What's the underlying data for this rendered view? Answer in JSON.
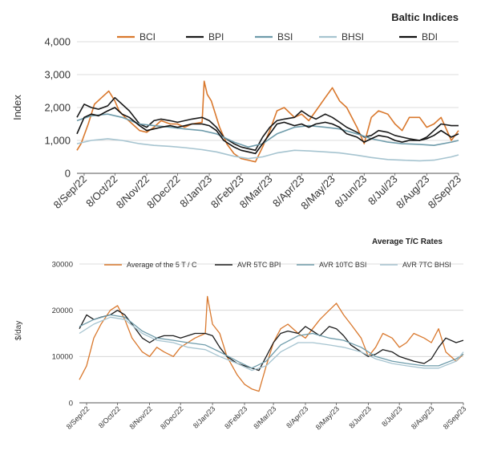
{
  "chart_data": [
    {
      "type": "line",
      "title": "Baltic Indices",
      "xlabel": "",
      "ylabel": "Index",
      "ylim": [
        0,
        4000
      ],
      "yticks": [
        "0",
        "1,000",
        "2,000",
        "3,000",
        "4,000"
      ],
      "ytick_values": [
        0,
        1000,
        2000,
        3000,
        4000
      ],
      "xlim": [
        "2022-09-01",
        "2023-09-08"
      ],
      "xticks": [
        "8/Sep/22",
        "8/Oct/22",
        "8/Nov/22",
        "8/Dec/22",
        "8/Jan/23",
        "8/Feb/23",
        "8/Mar/23",
        "8/Apr/23",
        "8/May/23",
        "8/Jun/23",
        "8/Jul/23",
        "8/Aug/23",
        "8/Sep/23"
      ],
      "xtick_dates": [
        "2022-09-08",
        "2022-10-08",
        "2022-11-08",
        "2022-12-08",
        "2023-01-08",
        "2023-02-08",
        "2023-03-08",
        "2023-04-08",
        "2023-05-08",
        "2023-06-08",
        "2023-07-08",
        "2023-08-08",
        "2023-09-08"
      ],
      "grid": true,
      "legend": "top",
      "series": [
        {
          "name": "BCI",
          "color": "#d9782d",
          "x": [
            "2022-09-01",
            "2022-09-05",
            "2022-09-12",
            "2022-09-18",
            "2022-09-25",
            "2022-10-02",
            "2022-10-08",
            "2022-10-12",
            "2022-10-18",
            "2022-10-25",
            "2022-11-01",
            "2022-11-08",
            "2022-11-15",
            "2022-11-22",
            "2022-12-01",
            "2022-12-08",
            "2022-12-15",
            "2022-12-22",
            "2023-01-01",
            "2023-01-03",
            "2023-01-06",
            "2023-01-10",
            "2023-01-18",
            "2023-01-25",
            "2023-02-01",
            "2023-02-08",
            "2023-02-15",
            "2023-02-22",
            "2023-03-01",
            "2023-03-08",
            "2023-03-15",
            "2023-03-22",
            "2023-04-01",
            "2023-04-08",
            "2023-04-15",
            "2023-04-22",
            "2023-05-01",
            "2023-05-08",
            "2023-05-15",
            "2023-05-22",
            "2023-06-01",
            "2023-06-08",
            "2023-06-15",
            "2023-06-22",
            "2023-07-01",
            "2023-07-08",
            "2023-07-15",
            "2023-07-22",
            "2023-08-01",
            "2023-08-08",
            "2023-08-15",
            "2023-08-22",
            "2023-09-01",
            "2023-09-08"
          ],
          "y": [
            700,
            900,
            1500,
            2100,
            2300,
            2500,
            2200,
            1900,
            1700,
            1500,
            1300,
            1250,
            1400,
            1600,
            1500,
            1500,
            1400,
            1500,
            1550,
            2800,
            2400,
            2200,
            1400,
            900,
            600,
            450,
            400,
            350,
            800,
            1300,
            1900,
            2000,
            1700,
            1800,
            1600,
            1900,
            2300,
            2600,
            2200,
            2000,
            1400,
            900,
            1700,
            1900,
            1800,
            1500,
            1300,
            1700,
            1700,
            1400,
            1500,
            1700,
            1000,
            1300
          ]
        },
        {
          "name": "BPI",
          "color": "#1b1b1b",
          "x": [
            "2022-09-01",
            "2022-09-08",
            "2022-09-15",
            "2022-09-22",
            "2022-10-01",
            "2022-10-08",
            "2022-10-15",
            "2022-10-22",
            "2022-11-01",
            "2022-11-08",
            "2022-11-15",
            "2022-11-22",
            "2022-12-01",
            "2022-12-08",
            "2022-12-15",
            "2022-12-22",
            "2023-01-01",
            "2023-01-08",
            "2023-01-15",
            "2023-01-22",
            "2023-02-01",
            "2023-02-08",
            "2023-02-15",
            "2023-02-22",
            "2023-03-01",
            "2023-03-08",
            "2023-03-15",
            "2023-03-22",
            "2023-04-01",
            "2023-04-08",
            "2023-04-15",
            "2023-04-22",
            "2023-05-01",
            "2023-05-08",
            "2023-05-15",
            "2023-05-22",
            "2023-06-01",
            "2023-06-08",
            "2023-06-15",
            "2023-06-22",
            "2023-07-01",
            "2023-07-08",
            "2023-07-15",
            "2023-07-22",
            "2023-08-01",
            "2023-08-08",
            "2023-08-15",
            "2023-08-22",
            "2023-09-01",
            "2023-09-08"
          ],
          "y": [
            1700,
            2100,
            2000,
            1950,
            2050,
            2300,
            2100,
            1900,
            1500,
            1400,
            1600,
            1650,
            1600,
            1550,
            1600,
            1650,
            1700,
            1600,
            1400,
            1100,
            900,
            800,
            750,
            700,
            1100,
            1400,
            1600,
            1650,
            1700,
            1900,
            1750,
            1650,
            1800,
            1700,
            1550,
            1400,
            1250,
            1100,
            1150,
            1300,
            1250,
            1150,
            1100,
            1050,
            1000,
            1100,
            1300,
            1500,
            1450,
            1450
          ]
        },
        {
          "name": "BSI",
          "color": "#6e9baa",
          "x": [
            "2022-09-01",
            "2022-09-15",
            "2022-10-01",
            "2022-10-15",
            "2022-11-01",
            "2022-11-15",
            "2022-12-01",
            "2022-12-15",
            "2023-01-01",
            "2023-01-15",
            "2023-02-01",
            "2023-02-15",
            "2023-03-01",
            "2023-03-15",
            "2023-04-01",
            "2023-04-15",
            "2023-05-01",
            "2023-05-15",
            "2023-06-01",
            "2023-06-15",
            "2023-07-01",
            "2023-07-15",
            "2023-08-01",
            "2023-08-15",
            "2023-09-01",
            "2023-09-08"
          ],
          "y": [
            1600,
            1750,
            1800,
            1700,
            1500,
            1450,
            1400,
            1350,
            1300,
            1200,
            950,
            800,
            900,
            1200,
            1400,
            1450,
            1400,
            1350,
            1200,
            1050,
            950,
            900,
            880,
            850,
            950,
            1000
          ]
        },
        {
          "name": "BHSI",
          "color": "#a6c4d0",
          "x": [
            "2022-09-01",
            "2022-09-15",
            "2022-10-01",
            "2022-10-15",
            "2022-11-01",
            "2022-11-15",
            "2022-12-01",
            "2022-12-15",
            "2023-01-01",
            "2023-01-15",
            "2023-02-01",
            "2023-02-15",
            "2023-03-01",
            "2023-03-15",
            "2023-04-01",
            "2023-04-15",
            "2023-05-01",
            "2023-05-15",
            "2023-06-01",
            "2023-06-15",
            "2023-07-01",
            "2023-07-15",
            "2023-08-01",
            "2023-08-15",
            "2023-09-01",
            "2023-09-08"
          ],
          "y": [
            900,
            1000,
            1050,
            1000,
            900,
            850,
            820,
            780,
            720,
            650,
            520,
            450,
            500,
            620,
            700,
            680,
            650,
            620,
            550,
            480,
            420,
            400,
            380,
            400,
            500,
            560
          ]
        },
        {
          "name": "BDI",
          "color": "#111111",
          "x": [
            "2022-09-01",
            "2022-09-08",
            "2022-09-15",
            "2022-09-22",
            "2022-10-01",
            "2022-10-08",
            "2022-10-15",
            "2022-10-22",
            "2022-11-01",
            "2022-11-08",
            "2022-11-15",
            "2022-11-22",
            "2022-12-01",
            "2022-12-08",
            "2022-12-15",
            "2022-12-22",
            "2023-01-01",
            "2023-01-08",
            "2023-01-15",
            "2023-01-22",
            "2023-02-01",
            "2023-02-08",
            "2023-02-15",
            "2023-02-22",
            "2023-03-01",
            "2023-03-08",
            "2023-03-15",
            "2023-03-22",
            "2023-04-01",
            "2023-04-08",
            "2023-04-15",
            "2023-04-22",
            "2023-05-01",
            "2023-05-08",
            "2023-05-15",
            "2023-05-22",
            "2023-06-01",
            "2023-06-08",
            "2023-06-15",
            "2023-06-22",
            "2023-07-01",
            "2023-07-08",
            "2023-07-15",
            "2023-07-22",
            "2023-08-01",
            "2023-08-08",
            "2023-08-15",
            "2023-08-22",
            "2023-09-01",
            "2023-09-08"
          ],
          "y": [
            1200,
            1700,
            1800,
            1750,
            1900,
            2000,
            1800,
            1700,
            1450,
            1300,
            1350,
            1400,
            1450,
            1400,
            1450,
            1500,
            1500,
            1450,
            1300,
            1000,
            800,
            700,
            650,
            600,
            900,
            1200,
            1500,
            1550,
            1450,
            1500,
            1400,
            1500,
            1550,
            1500,
            1400,
            1200,
            1100,
            950,
            1050,
            1150,
            1100,
            1000,
            950,
            1000,
            1000,
            1050,
            1150,
            1300,
            1100,
            1200
          ]
        }
      ]
    },
    {
      "type": "line",
      "title": "Average T/C Rates",
      "xlabel": "",
      "ylabel": "$/day",
      "ylim": [
        0,
        30000
      ],
      "yticks": [
        "0",
        "10000",
        "20000",
        "30000"
      ],
      "ytick_values": [
        0,
        10000,
        20000,
        30000
      ],
      "xlim": [
        "2022-09-01",
        "2023-09-08"
      ],
      "xticks": [
        "8/Sep/22",
        "8/Oct/22",
        "8/Nov/22",
        "8/Dec/22",
        "8/Jan/23",
        "8/Feb/23",
        "8/Mar/23",
        "8/Apr/23",
        "8/May/23",
        "8/Jun/23",
        "8/Jul/23",
        "8/Aug/23",
        "8/Sep/23"
      ],
      "xtick_dates": [
        "2022-09-08",
        "2022-10-08",
        "2022-11-08",
        "2022-12-08",
        "2023-01-08",
        "2023-02-08",
        "2023-03-08",
        "2023-04-08",
        "2023-05-08",
        "2023-06-08",
        "2023-07-08",
        "2023-08-08",
        "2023-09-08"
      ],
      "grid": true,
      "legend": "top",
      "series": [
        {
          "name": "Average of the 5 T / C",
          "color": "#d9782d",
          "x": [
            "2022-09-01",
            "2022-09-08",
            "2022-09-15",
            "2022-09-22",
            "2022-10-01",
            "2022-10-08",
            "2022-10-15",
            "2022-10-22",
            "2022-11-01",
            "2022-11-08",
            "2022-11-15",
            "2022-11-22",
            "2022-12-01",
            "2022-12-08",
            "2022-12-15",
            "2022-12-22",
            "2023-01-01",
            "2023-01-03",
            "2023-01-08",
            "2023-01-15",
            "2023-01-22",
            "2023-02-01",
            "2023-02-08",
            "2023-02-15",
            "2023-02-22",
            "2023-03-01",
            "2023-03-08",
            "2023-03-15",
            "2023-03-22",
            "2023-04-01",
            "2023-04-08",
            "2023-04-15",
            "2023-04-22",
            "2023-05-01",
            "2023-05-08",
            "2023-05-15",
            "2023-05-22",
            "2023-06-01",
            "2023-06-08",
            "2023-06-15",
            "2023-06-22",
            "2023-07-01",
            "2023-07-08",
            "2023-07-15",
            "2023-07-22",
            "2023-08-01",
            "2023-08-08",
            "2023-08-15",
            "2023-08-22",
            "2023-09-01",
            "2023-09-08"
          ],
          "y": [
            5000,
            8000,
            14000,
            17000,
            20000,
            21000,
            18000,
            14000,
            11000,
            10000,
            12000,
            11000,
            10000,
            12000,
            13000,
            14000,
            15000,
            23000,
            17000,
            15000,
            10000,
            6000,
            4000,
            3000,
            2500,
            8000,
            13000,
            16000,
            17000,
            15000,
            14000,
            16000,
            18000,
            20000,
            21500,
            19000,
            17000,
            14000,
            10000,
            12000,
            15000,
            14000,
            12000,
            13000,
            15000,
            14000,
            13000,
            16000,
            11000,
            9000,
            10500
          ]
        },
        {
          "name": "AVR 5TC BPI",
          "color": "#1b1b1b",
          "x": [
            "2022-09-01",
            "2022-09-08",
            "2022-09-15",
            "2022-09-22",
            "2022-10-01",
            "2022-10-08",
            "2022-10-15",
            "2022-10-22",
            "2022-11-01",
            "2022-11-08",
            "2022-11-15",
            "2022-11-22",
            "2022-12-01",
            "2022-12-08",
            "2022-12-15",
            "2022-12-22",
            "2023-01-01",
            "2023-01-08",
            "2023-01-15",
            "2023-01-22",
            "2023-02-01",
            "2023-02-08",
            "2023-02-15",
            "2023-02-22",
            "2023-03-01",
            "2023-03-08",
            "2023-03-15",
            "2023-03-22",
            "2023-04-01",
            "2023-04-08",
            "2023-04-15",
            "2023-04-22",
            "2023-05-01",
            "2023-05-08",
            "2023-05-15",
            "2023-05-22",
            "2023-06-01",
            "2023-06-08",
            "2023-06-15",
            "2023-06-22",
            "2023-07-01",
            "2023-07-08",
            "2023-07-15",
            "2023-07-22",
            "2023-08-01",
            "2023-08-08",
            "2023-08-15",
            "2023-08-22",
            "2023-09-01",
            "2023-09-08"
          ],
          "y": [
            16000,
            19000,
            18000,
            18500,
            19000,
            20000,
            19000,
            17000,
            14000,
            13000,
            14000,
            14500,
            14500,
            14000,
            14500,
            15000,
            15000,
            14500,
            12000,
            10000,
            8500,
            8000,
            7500,
            7000,
            10000,
            13000,
            15000,
            15500,
            15000,
            16500,
            15500,
            14500,
            16500,
            16000,
            14500,
            12500,
            11000,
            10000,
            10500,
            11500,
            11000,
            10000,
            9500,
            9000,
            8500,
            9500,
            12000,
            14000,
            13000,
            13500
          ]
        },
        {
          "name": "AVR 10TC BSI",
          "color": "#6e9baa",
          "x": [
            "2022-09-01",
            "2022-09-15",
            "2022-10-01",
            "2022-10-15",
            "2022-11-01",
            "2022-11-15",
            "2022-12-01",
            "2022-12-15",
            "2023-01-01",
            "2023-01-15",
            "2023-02-01",
            "2023-02-15",
            "2023-03-01",
            "2023-03-15",
            "2023-04-01",
            "2023-04-15",
            "2023-05-01",
            "2023-05-15",
            "2023-06-01",
            "2023-06-15",
            "2023-07-01",
            "2023-07-15",
            "2023-08-01",
            "2023-08-15",
            "2023-09-01",
            "2023-09-08"
          ],
          "y": [
            16500,
            18000,
            19000,
            18500,
            15500,
            14000,
            13500,
            13000,
            12500,
            11000,
            9000,
            7500,
            9000,
            12500,
            14500,
            15000,
            14000,
            13500,
            12000,
            10000,
            9000,
            8500,
            8000,
            8000,
            9500,
            10500
          ]
        },
        {
          "name": "AVR 7TC BHSI",
          "color": "#a6c4d0",
          "x": [
            "2022-09-01",
            "2022-09-15",
            "2022-10-01",
            "2022-10-15",
            "2022-11-01",
            "2022-11-15",
            "2022-12-01",
            "2022-12-15",
            "2023-01-01",
            "2023-01-15",
            "2023-02-01",
            "2023-02-15",
            "2023-03-01",
            "2023-03-15",
            "2023-04-01",
            "2023-04-15",
            "2023-05-01",
            "2023-05-15",
            "2023-06-01",
            "2023-06-15",
            "2023-07-01",
            "2023-07-15",
            "2023-08-01",
            "2023-08-15",
            "2023-09-01",
            "2023-09-08"
          ],
          "y": [
            15000,
            17000,
            18500,
            18000,
            15000,
            13500,
            13000,
            12000,
            11500,
            10000,
            8500,
            7000,
            8000,
            11000,
            13000,
            13000,
            12500,
            12000,
            11000,
            9500,
            8500,
            8000,
            7500,
            7500,
            9000,
            11000
          ]
        }
      ]
    }
  ]
}
